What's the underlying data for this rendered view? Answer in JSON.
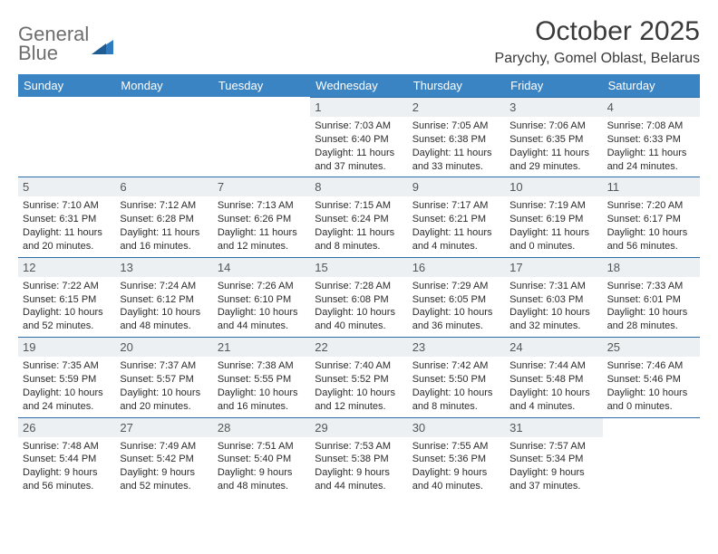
{
  "logo": {
    "text_top": "General",
    "text_bottom": "Blue"
  },
  "title": "October 2025",
  "location": "Parychy, Gomel Oblast, Belarus",
  "colors": {
    "header_bg": "#3b84c4",
    "header_text": "#ffffff",
    "daynum_bg": "#edf0f2",
    "border": "#2d6ea8",
    "logo_gray": "#6e6e6e",
    "logo_blue": "#2f7bbf"
  },
  "daynames": [
    "Sunday",
    "Monday",
    "Tuesday",
    "Wednesday",
    "Thursday",
    "Friday",
    "Saturday"
  ],
  "weeks": [
    [
      {
        "n": ""
      },
      {
        "n": ""
      },
      {
        "n": ""
      },
      {
        "n": "1",
        "sr": "7:03 AM",
        "ss": "6:40 PM",
        "dl": "11 hours and 37 minutes."
      },
      {
        "n": "2",
        "sr": "7:05 AM",
        "ss": "6:38 PM",
        "dl": "11 hours and 33 minutes."
      },
      {
        "n": "3",
        "sr": "7:06 AM",
        "ss": "6:35 PM",
        "dl": "11 hours and 29 minutes."
      },
      {
        "n": "4",
        "sr": "7:08 AM",
        "ss": "6:33 PM",
        "dl": "11 hours and 24 minutes."
      }
    ],
    [
      {
        "n": "5",
        "sr": "7:10 AM",
        "ss": "6:31 PM",
        "dl": "11 hours and 20 minutes."
      },
      {
        "n": "6",
        "sr": "7:12 AM",
        "ss": "6:28 PM",
        "dl": "11 hours and 16 minutes."
      },
      {
        "n": "7",
        "sr": "7:13 AM",
        "ss": "6:26 PM",
        "dl": "11 hours and 12 minutes."
      },
      {
        "n": "8",
        "sr": "7:15 AM",
        "ss": "6:24 PM",
        "dl": "11 hours and 8 minutes."
      },
      {
        "n": "9",
        "sr": "7:17 AM",
        "ss": "6:21 PM",
        "dl": "11 hours and 4 minutes."
      },
      {
        "n": "10",
        "sr": "7:19 AM",
        "ss": "6:19 PM",
        "dl": "11 hours and 0 minutes."
      },
      {
        "n": "11",
        "sr": "7:20 AM",
        "ss": "6:17 PM",
        "dl": "10 hours and 56 minutes."
      }
    ],
    [
      {
        "n": "12",
        "sr": "7:22 AM",
        "ss": "6:15 PM",
        "dl": "10 hours and 52 minutes."
      },
      {
        "n": "13",
        "sr": "7:24 AM",
        "ss": "6:12 PM",
        "dl": "10 hours and 48 minutes."
      },
      {
        "n": "14",
        "sr": "7:26 AM",
        "ss": "6:10 PM",
        "dl": "10 hours and 44 minutes."
      },
      {
        "n": "15",
        "sr": "7:28 AM",
        "ss": "6:08 PM",
        "dl": "10 hours and 40 minutes."
      },
      {
        "n": "16",
        "sr": "7:29 AM",
        "ss": "6:05 PM",
        "dl": "10 hours and 36 minutes."
      },
      {
        "n": "17",
        "sr": "7:31 AM",
        "ss": "6:03 PM",
        "dl": "10 hours and 32 minutes."
      },
      {
        "n": "18",
        "sr": "7:33 AM",
        "ss": "6:01 PM",
        "dl": "10 hours and 28 minutes."
      }
    ],
    [
      {
        "n": "19",
        "sr": "7:35 AM",
        "ss": "5:59 PM",
        "dl": "10 hours and 24 minutes."
      },
      {
        "n": "20",
        "sr": "7:37 AM",
        "ss": "5:57 PM",
        "dl": "10 hours and 20 minutes."
      },
      {
        "n": "21",
        "sr": "7:38 AM",
        "ss": "5:55 PM",
        "dl": "10 hours and 16 minutes."
      },
      {
        "n": "22",
        "sr": "7:40 AM",
        "ss": "5:52 PM",
        "dl": "10 hours and 12 minutes."
      },
      {
        "n": "23",
        "sr": "7:42 AM",
        "ss": "5:50 PM",
        "dl": "10 hours and 8 minutes."
      },
      {
        "n": "24",
        "sr": "7:44 AM",
        "ss": "5:48 PM",
        "dl": "10 hours and 4 minutes."
      },
      {
        "n": "25",
        "sr": "7:46 AM",
        "ss": "5:46 PM",
        "dl": "10 hours and 0 minutes."
      }
    ],
    [
      {
        "n": "26",
        "sr": "7:48 AM",
        "ss": "5:44 PM",
        "dl": "9 hours and 56 minutes."
      },
      {
        "n": "27",
        "sr": "7:49 AM",
        "ss": "5:42 PM",
        "dl": "9 hours and 52 minutes."
      },
      {
        "n": "28",
        "sr": "7:51 AM",
        "ss": "5:40 PM",
        "dl": "9 hours and 48 minutes."
      },
      {
        "n": "29",
        "sr": "7:53 AM",
        "ss": "5:38 PM",
        "dl": "9 hours and 44 minutes."
      },
      {
        "n": "30",
        "sr": "7:55 AM",
        "ss": "5:36 PM",
        "dl": "9 hours and 40 minutes."
      },
      {
        "n": "31",
        "sr": "7:57 AM",
        "ss": "5:34 PM",
        "dl": "9 hours and 37 minutes."
      },
      {
        "n": ""
      }
    ]
  ]
}
